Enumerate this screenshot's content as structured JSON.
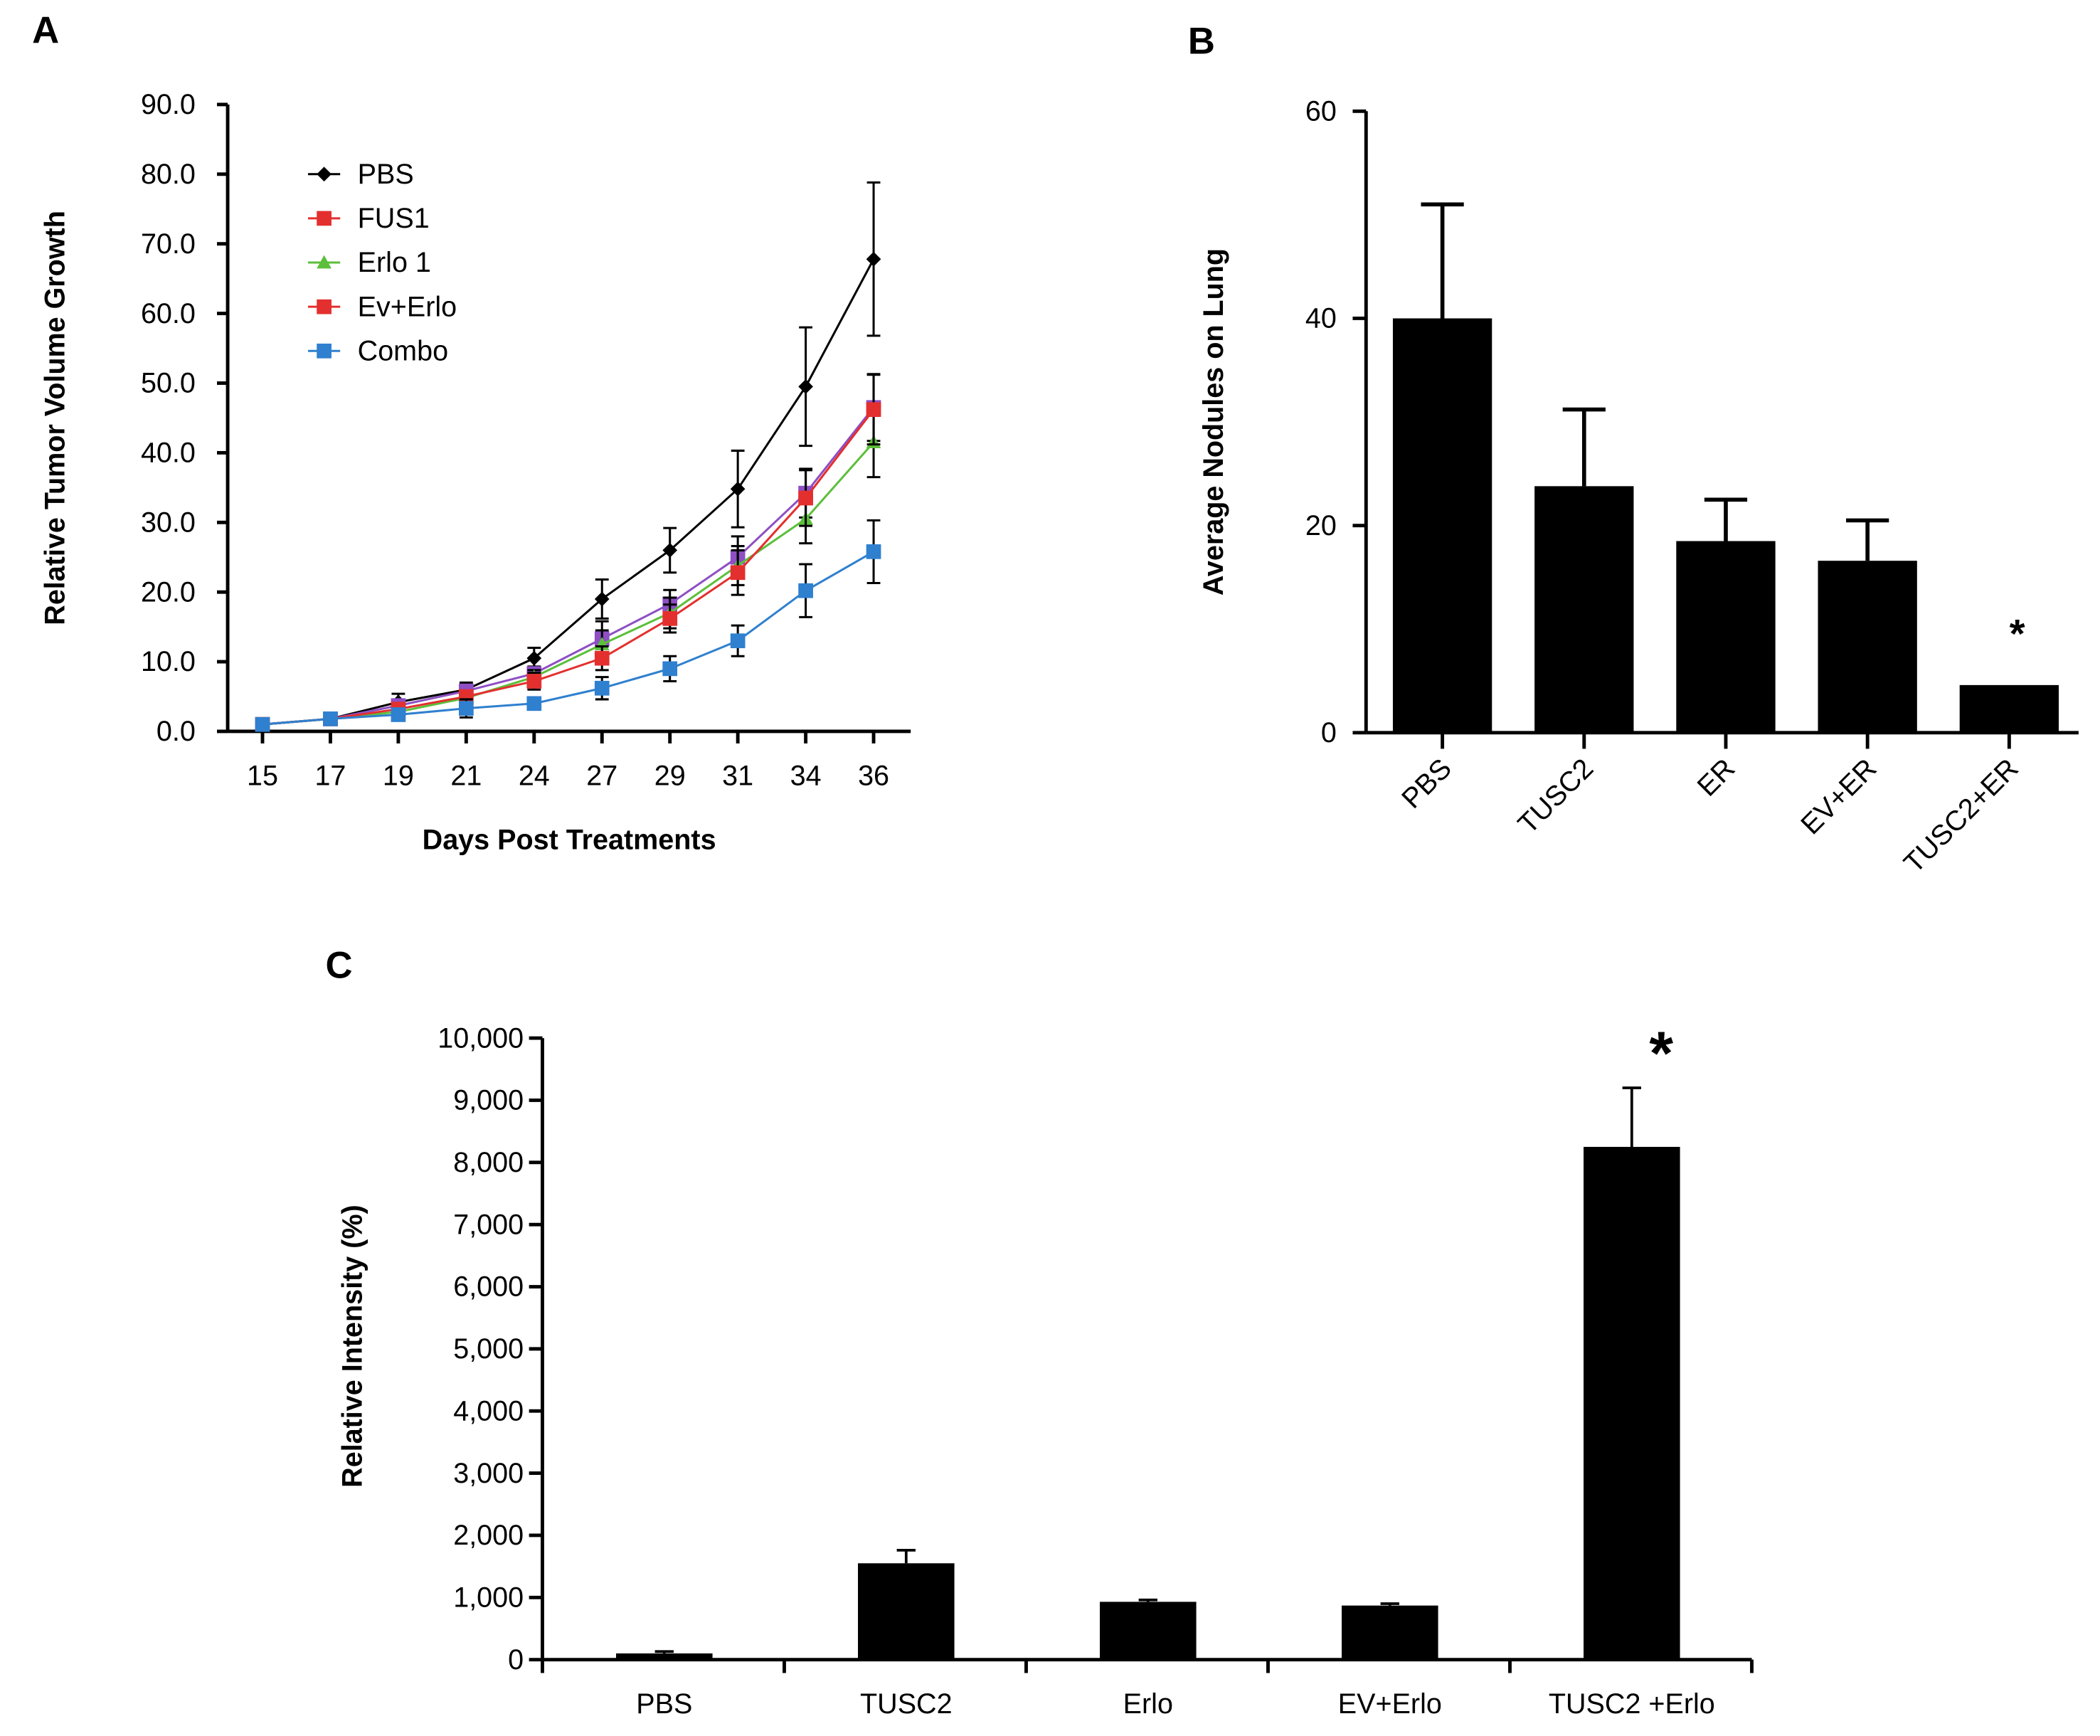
{
  "chart_data": [
    {
      "panel": "A",
      "type": "line",
      "xlabel": "Days Post Treatments",
      "ylabel": "Relative Tumor Volume Growth",
      "categories": [
        "15",
        "17",
        "19",
        "21",
        "24",
        "27",
        "29",
        "31",
        "34",
        "36"
      ],
      "ylim": [
        0,
        90
      ],
      "yticks": [
        "0.0",
        "10.0",
        "20.0",
        "30.0",
        "40.0",
        "50.0",
        "60.0",
        "70.0",
        "80.0",
        "90.0"
      ],
      "legend_placement": "top-left",
      "grid": false,
      "series": [
        {
          "name": "PBS",
          "color": "#000000",
          "marker": "diamond",
          "values": [
            1,
            1.8,
            4.2,
            6,
            10.5,
            19,
            26,
            34.8,
            49.5,
            67.8
          ],
          "errors": [
            0,
            0,
            1.2,
            1,
            1.5,
            2.8,
            3.2,
            5.5,
            8.5,
            11
          ]
        },
        {
          "name": "FUS1",
          "color": "#8e4fc4",
          "legend_color": "#e3302f",
          "marker": "square",
          "values": [
            1,
            1.8,
            3.7,
            5.8,
            8.3,
            13.3,
            18.3,
            25,
            34.2,
            46.5
          ],
          "errors": [
            0,
            0,
            0.6,
            0.8,
            1,
            2.5,
            2,
            3,
            3.5,
            4.8
          ]
        },
        {
          "name": "Erlo 1",
          "color": "#5cbf3a",
          "marker": "triangle",
          "values": [
            1,
            1.8,
            2.8,
            4.8,
            7.8,
            12.5,
            17,
            23.8,
            30.5,
            41.5
          ],
          "errors": [
            0,
            0,
            0.5,
            0.8,
            1,
            2,
            2.2,
            2.8,
            3.5,
            5
          ]
        },
        {
          "name": "Ev+Erlo",
          "color": "#e3302f",
          "marker": "square",
          "values": [
            1,
            1.8,
            3.2,
            5,
            7.2,
            10.5,
            16.2,
            22.8,
            33.5,
            46.2
          ],
          "errors": [
            0,
            0,
            0.5,
            0.8,
            1.2,
            1.7,
            2,
            3.2,
            4,
            5
          ]
        },
        {
          "name": "Combo",
          "color": "#2f80cf",
          "marker": "square",
          "values": [
            1,
            1.8,
            2.4,
            3.3,
            4,
            6.2,
            9,
            13,
            20.2,
            25.8
          ],
          "errors": [
            0,
            0,
            0.5,
            1.3,
            0.5,
            1.6,
            1.8,
            2.2,
            3.8,
            4.5
          ]
        }
      ]
    },
    {
      "panel": "B",
      "type": "bar",
      "ylabel": "Average Nodules on Lung",
      "categories": [
        "PBS",
        "TUSC2",
        "ER",
        "EV+ER",
        "TUSC2+ER"
      ],
      "values": [
        40,
        23.8,
        18.5,
        16.6,
        4.6
      ],
      "errors": [
        11,
        7.4,
        4,
        3.9,
        0
      ],
      "annotations": [
        "",
        "",
        "",
        "",
        "*"
      ],
      "ylim": [
        0,
        60
      ],
      "yticks": [
        "0",
        "20",
        "40",
        "60"
      ],
      "color": "#000000"
    },
    {
      "panel": "C",
      "type": "bar",
      "ylabel": "Relative Intensity (%)",
      "categories": [
        "PBS",
        "TUSC2",
        "Erlo",
        "EV+Erlo",
        "TUSC2 +Erlo"
      ],
      "values": [
        100,
        1550,
        930,
        870,
        8250
      ],
      "errors": [
        30,
        210,
        30,
        30,
        950
      ],
      "annotations": [
        "",
        "",
        "",
        "",
        "*"
      ],
      "ylim": [
        0,
        10000
      ],
      "yticks": [
        "0",
        "1,000",
        "2,000",
        "3,000",
        "4,000",
        "5,000",
        "6,000",
        "7,000",
        "8,000",
        "9,000",
        "10,000"
      ],
      "color": "#000000"
    }
  ]
}
